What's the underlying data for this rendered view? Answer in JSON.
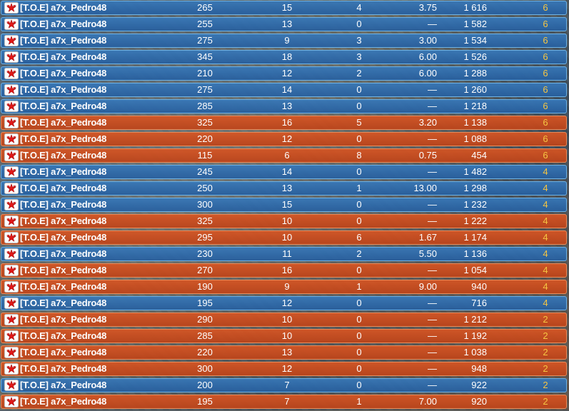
{
  "colors": {
    "blue_team": "#2f6fb0",
    "red_team": "#cc5a22",
    "rank_gold": "#f5c542"
  },
  "icons": {
    "clan_badge": "red-star-badge-icon"
  },
  "rows": [
    {
      "team": "blue",
      "name": "[T.O.E] a7x_Pedro48",
      "score": "265",
      "kills": "15",
      "deaths": "4",
      "kd": "3.75",
      "points": "1 616",
      "rank": "6"
    },
    {
      "team": "blue",
      "name": "[T.O.E] a7x_Pedro48",
      "score": "255",
      "kills": "13",
      "deaths": "0",
      "kd": "—",
      "points": "1 582",
      "rank": "6"
    },
    {
      "team": "blue",
      "name": "[T.O.E] a7x_Pedro48",
      "score": "275",
      "kills": "9",
      "deaths": "3",
      "kd": "3.00",
      "points": "1 534",
      "rank": "6"
    },
    {
      "team": "blue",
      "name": "[T.O.E] a7x_Pedro48",
      "score": "345",
      "kills": "18",
      "deaths": "3",
      "kd": "6.00",
      "points": "1 526",
      "rank": "6"
    },
    {
      "team": "blue",
      "name": "[T.O.E] a7x_Pedro48",
      "score": "210",
      "kills": "12",
      "deaths": "2",
      "kd": "6.00",
      "points": "1 288",
      "rank": "6"
    },
    {
      "team": "blue",
      "name": "[T.O.E] a7x_Pedro48",
      "score": "275",
      "kills": "14",
      "deaths": "0",
      "kd": "—",
      "points": "1 260",
      "rank": "6"
    },
    {
      "team": "blue",
      "name": "[T.O.E] a7x_Pedro48",
      "score": "285",
      "kills": "13",
      "deaths": "0",
      "kd": "—",
      "points": "1 218",
      "rank": "6"
    },
    {
      "team": "red",
      "name": "[T.O.E] a7x_Pedro48",
      "score": "325",
      "kills": "16",
      "deaths": "5",
      "kd": "3.20",
      "points": "1 138",
      "rank": "6"
    },
    {
      "team": "red",
      "name": "[T.O.E] a7x_Pedro48",
      "score": "220",
      "kills": "12",
      "deaths": "0",
      "kd": "—",
      "points": "1 088",
      "rank": "6"
    },
    {
      "team": "red",
      "name": "[T.O.E] a7x_Pedro48",
      "score": "115",
      "kills": "6",
      "deaths": "8",
      "kd": "0.75",
      "points": "454",
      "rank": "6"
    },
    {
      "team": "blue",
      "name": "[T.O.E] a7x_Pedro48",
      "score": "245",
      "kills": "14",
      "deaths": "0",
      "kd": "—",
      "points": "1 482",
      "rank": "4"
    },
    {
      "team": "blue",
      "name": "[T.O.E] a7x_Pedro48",
      "score": "250",
      "kills": "13",
      "deaths": "1",
      "kd": "13.00",
      "points": "1 298",
      "rank": "4"
    },
    {
      "team": "blue",
      "name": "[T.O.E] a7x_Pedro48",
      "score": "300",
      "kills": "15",
      "deaths": "0",
      "kd": "—",
      "points": "1 232",
      "rank": "4"
    },
    {
      "team": "red",
      "name": "[T.O.E] a7x_Pedro48",
      "score": "325",
      "kills": "10",
      "deaths": "0",
      "kd": "—",
      "points": "1 222",
      "rank": "4"
    },
    {
      "team": "red",
      "name": "[T.O.E] a7x_Pedro48",
      "score": "295",
      "kills": "10",
      "deaths": "6",
      "kd": "1.67",
      "points": "1 174",
      "rank": "4"
    },
    {
      "team": "blue",
      "name": "[T.O.E] a7x_Pedro48",
      "score": "230",
      "kills": "11",
      "deaths": "2",
      "kd": "5.50",
      "points": "1 136",
      "rank": "4"
    },
    {
      "team": "red",
      "name": "[T.O.E] a7x_Pedro48",
      "score": "270",
      "kills": "16",
      "deaths": "0",
      "kd": "—",
      "points": "1 054",
      "rank": "4"
    },
    {
      "team": "red",
      "name": "[T.O.E] a7x_Pedro48",
      "score": "190",
      "kills": "9",
      "deaths": "1",
      "kd": "9.00",
      "points": "940",
      "rank": "4"
    },
    {
      "team": "blue",
      "name": "[T.O.E] a7x_Pedro48",
      "score": "195",
      "kills": "12",
      "deaths": "0",
      "kd": "—",
      "points": "716",
      "rank": "4"
    },
    {
      "team": "red",
      "name": "[T.O.E] a7x_Pedro48",
      "score": "290",
      "kills": "10",
      "deaths": "0",
      "kd": "—",
      "points": "1 212",
      "rank": "2"
    },
    {
      "team": "red",
      "name": "[T.O.E] a7x_Pedro48",
      "score": "285",
      "kills": "10",
      "deaths": "0",
      "kd": "—",
      "points": "1 192",
      "rank": "2"
    },
    {
      "team": "red",
      "name": "[T.O.E] a7x_Pedro48",
      "score": "220",
      "kills": "13",
      "deaths": "0",
      "kd": "—",
      "points": "1 038",
      "rank": "2"
    },
    {
      "team": "red",
      "name": "[T.O.E] a7x_Pedro48",
      "score": "300",
      "kills": "12",
      "deaths": "0",
      "kd": "—",
      "points": "948",
      "rank": "2"
    },
    {
      "team": "blue",
      "name": "[T.O.E] a7x_Pedro48",
      "score": "200",
      "kills": "7",
      "deaths": "0",
      "kd": "—",
      "points": "922",
      "rank": "2"
    },
    {
      "team": "red",
      "name": "[T.O.E] a7x_Pedro48",
      "score": "195",
      "kills": "7",
      "deaths": "1",
      "kd": "7.00",
      "points": "920",
      "rank": "2"
    }
  ]
}
